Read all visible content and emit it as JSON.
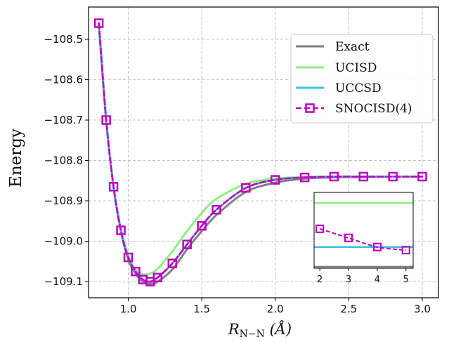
{
  "chart_data": {
    "type": "line",
    "xlabel_main": "R",
    "xlabel_sub": "N−N",
    "xlabel_unit": "(Å)",
    "ylabel": "Energy",
    "xlim": [
      0.73,
      3.11
    ],
    "ylim": [
      -109.14,
      -108.42
    ],
    "x_ticks": [
      1.0,
      1.5,
      2.0,
      2.5,
      3.0
    ],
    "x_tick_labels": [
      "1.0",
      "1.5",
      "2.0",
      "2.5",
      "3.0"
    ],
    "y_ticks": [
      -108.5,
      -108.6,
      -108.7,
      -108.8,
      -108.9,
      -109.0,
      -109.1
    ],
    "y_tick_labels": [
      "−108.5",
      "−108.6",
      "−108.7",
      "−108.8",
      "−108.9",
      "−109.0",
      "−109.1"
    ],
    "grid": true,
    "legend_position": "top-right",
    "series": [
      {
        "name": "Exact",
        "color": "#808080",
        "style": "solid",
        "x": [
          0.8,
          0.85,
          0.9,
          0.95,
          1.0,
          1.05,
          1.1,
          1.15,
          1.2,
          1.3,
          1.4,
          1.5,
          1.6,
          1.8,
          2.0,
          2.2,
          2.4,
          2.6,
          2.8,
          3.0
        ],
        "y": [
          -108.46,
          -108.7,
          -108.865,
          -108.975,
          -109.045,
          -109.08,
          -109.1,
          -109.105,
          -109.1,
          -109.07,
          -109.02,
          -108.975,
          -108.935,
          -108.878,
          -108.855,
          -108.845,
          -108.842,
          -108.841,
          -108.84,
          -108.84
        ]
      },
      {
        "name": "UCISD",
        "color": "#90ee80",
        "style": "solid",
        "x": [
          0.8,
          0.85,
          0.9,
          0.95,
          1.0,
          1.05,
          1.1,
          1.15,
          1.2,
          1.3,
          1.4,
          1.5,
          1.6,
          1.8,
          2.0,
          2.2,
          2.4,
          2.6,
          2.8,
          3.0
        ],
        "y": [
          -108.46,
          -108.7,
          -108.865,
          -108.97,
          -109.035,
          -109.07,
          -109.082,
          -109.08,
          -109.068,
          -109.025,
          -108.975,
          -108.93,
          -108.895,
          -108.858,
          -108.845,
          -108.841,
          -108.84,
          -108.84,
          -108.84,
          -108.84
        ]
      },
      {
        "name": "UCCSD",
        "color": "#40c0e0",
        "style": "solid",
        "x": [
          0.8,
          0.85,
          0.9,
          0.95,
          1.0,
          1.05,
          1.1,
          1.15,
          1.2,
          1.3,
          1.4,
          1.5,
          1.6,
          1.8,
          2.0,
          2.2,
          2.4,
          2.6,
          2.8,
          3.0
        ],
        "y": [
          -108.46,
          -108.7,
          -108.865,
          -108.973,
          -109.04,
          -109.075,
          -109.095,
          -109.1,
          -109.09,
          -109.055,
          -109.008,
          -108.962,
          -108.922,
          -108.868,
          -108.848,
          -108.842,
          -108.84,
          -108.84,
          -108.84,
          -108.84
        ]
      },
      {
        "name": "SNOCISD(4)",
        "color": "#c000c0",
        "style": "dashed",
        "marker": "square",
        "x": [
          0.8,
          0.85,
          0.9,
          0.95,
          1.0,
          1.05,
          1.1,
          1.15,
          1.2,
          1.3,
          1.4,
          1.5,
          1.6,
          1.8,
          2.0,
          2.2,
          2.4,
          2.6,
          2.8,
          3.0
        ],
        "y": [
          -108.46,
          -108.7,
          -108.865,
          -108.973,
          -109.04,
          -109.075,
          -109.095,
          -109.1,
          -109.09,
          -109.055,
          -109.008,
          -108.962,
          -108.922,
          -108.868,
          -108.848,
          -108.842,
          -108.84,
          -108.84,
          -108.84,
          -108.84
        ]
      }
    ],
    "inset": {
      "x_ticks": [
        2,
        3,
        4,
        5
      ],
      "x_tick_labels": [
        "2",
        "3",
        "4",
        "5"
      ],
      "xlim": [
        1.8,
        5.25
      ],
      "ylim": [
        0.0,
        1.0
      ],
      "ucisd_level": 0.86,
      "uccsd_level": 0.28,
      "exact_level": 0.02,
      "snocisd_x": [
        2,
        3,
        4,
        5
      ],
      "snocisd_y": [
        0.52,
        0.4,
        0.28,
        0.24
      ]
    }
  }
}
